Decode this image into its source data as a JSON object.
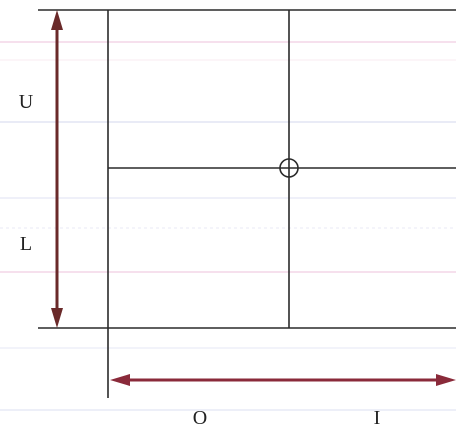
{
  "diagram": {
    "labels": {
      "upper": "U",
      "lower": "L",
      "outer": "O",
      "inner": "I"
    },
    "colors": {
      "background": "#ffffff",
      "line": "#2a2a2a",
      "vertical_arrow": "#6a2a2a",
      "horizontal_arrow": "#8a2a3a",
      "label": "#222222",
      "faint_ghost_text": "#c8cde8",
      "faint_ghost_pink": "#f0c8e0"
    },
    "markers": {
      "intersection": "circle-marker"
    }
  }
}
